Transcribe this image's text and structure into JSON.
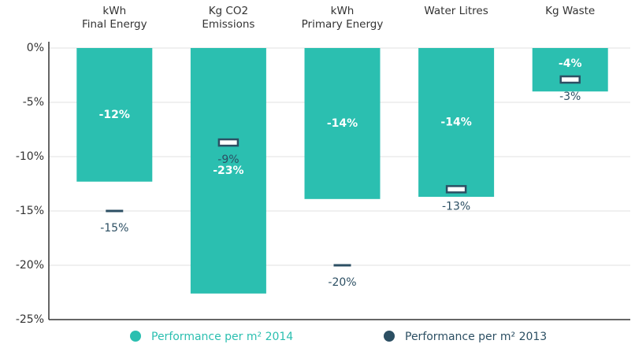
{
  "chart_data": {
    "type": "bar",
    "categories": [
      "kWh\nFinal Energy",
      "Kg CO2\nEmissions",
      "kWh\nPrimary Energy",
      "Water Litres",
      "Kg Waste"
    ],
    "series": [
      {
        "name": "Performance per m² 2014",
        "color": "#2bbfb0",
        "values": [
          -12.3,
          -22.6,
          -13.9,
          -13.7,
          -4.0
        ],
        "value_labels": [
          "-12%",
          "-23%",
          "-14%",
          "-14%",
          "-4%"
        ]
      },
      {
        "name": "Performance per m² 2013",
        "color": "#2c4f63",
        "values": [
          -15,
          -8.7,
          -20,
          -13,
          -2.9
        ],
        "value_labels": [
          "-15%",
          "-9%",
          "-20%",
          "-13%",
          "-3%"
        ]
      }
    ],
    "ylim": [
      -25,
      0
    ],
    "yticks": [
      {
        "value": 0,
        "label": "0%"
      },
      {
        "value": -5,
        "label": "-5%"
      },
      {
        "value": -10,
        "label": "-10%"
      },
      {
        "value": -15,
        "label": "-15%"
      },
      {
        "value": -20,
        "label": "-20%"
      },
      {
        "value": -25,
        "label": "-25%"
      }
    ],
    "grid": true
  }
}
